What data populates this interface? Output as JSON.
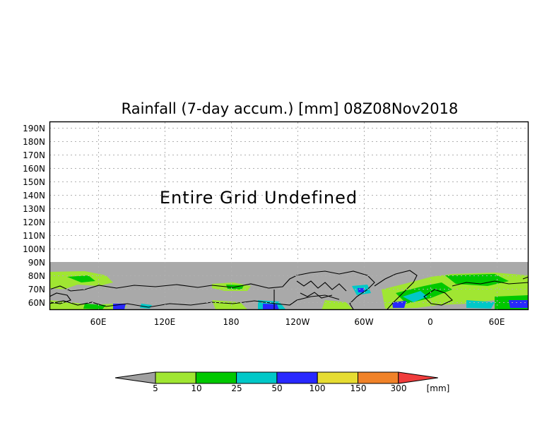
{
  "title": "Rainfall (7-day accum.) [mm] 08Z08Nov2018",
  "message": "Entire Grid Undefined",
  "y_axis": {
    "tick_labels": [
      "190N",
      "180N",
      "170N",
      "160N",
      "150N",
      "140N",
      "130N",
      "120N",
      "110N",
      "100N",
      "90N",
      "80N",
      "70N",
      "60N"
    ]
  },
  "x_axis": {
    "tick_labels": [
      "60E",
      "120E",
      "180",
      "120W",
      "60W",
      "0",
      "60E"
    ]
  },
  "colorbar": {
    "unit": "[mm]",
    "ticks": [
      "5",
      "10",
      "25",
      "50",
      "100",
      "150",
      "300"
    ],
    "colors": [
      "#a0a0a0",
      "#a0e632",
      "#00c800",
      "#00c8c8",
      "#2828ff",
      "#e6dc32",
      "#f08228",
      "#f03c3c"
    ]
  },
  "colors": {
    "undefined_fill": "#a9a9a9",
    "coastline": "#000000",
    "grid": "#b0b0b0"
  }
}
